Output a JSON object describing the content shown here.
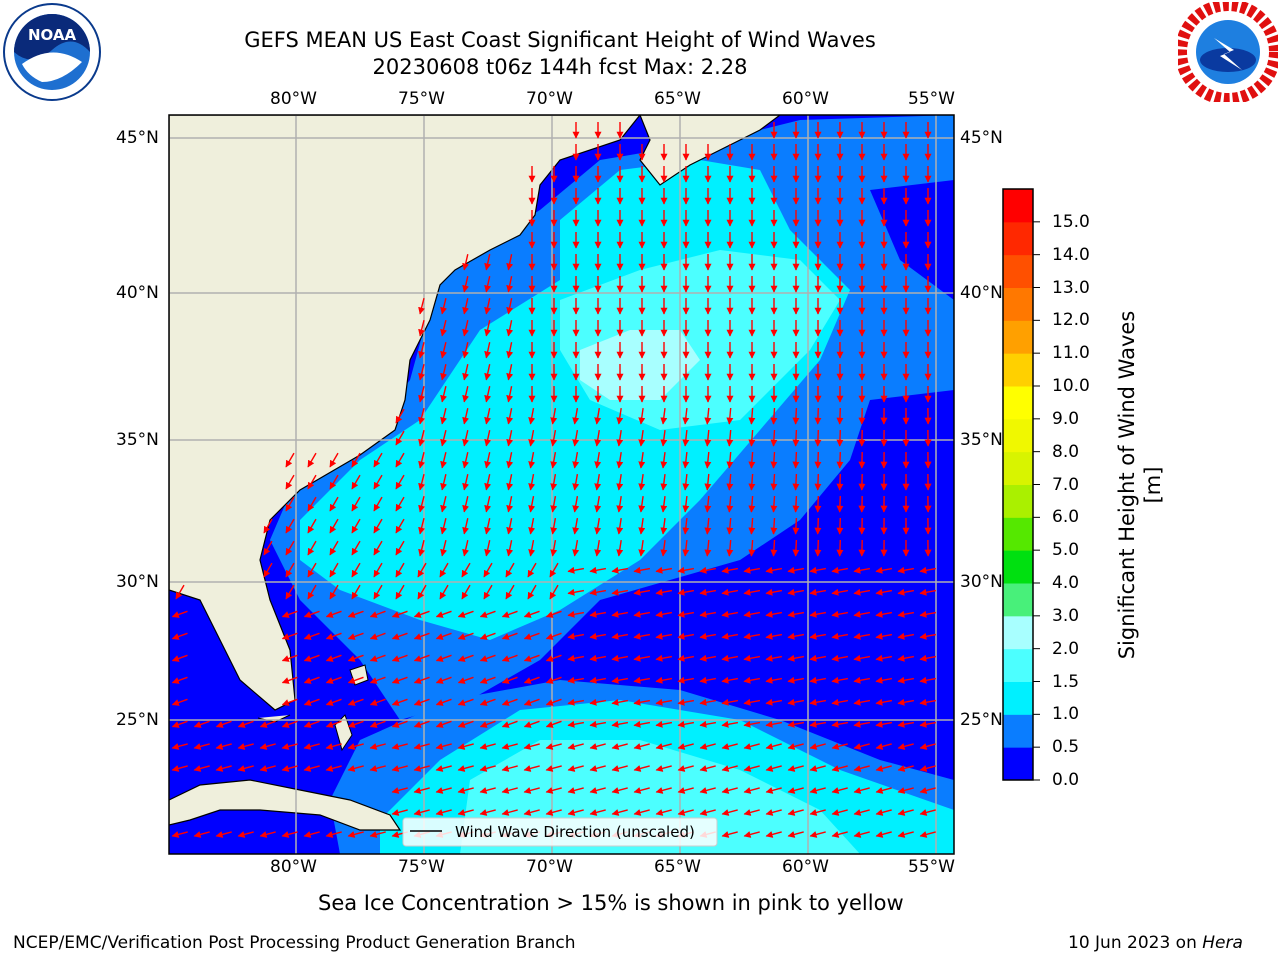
{
  "title_line1": "GEFS MEAN US East Coast Significant Height of Wind Waves",
  "title_line2": "20230608 t06z 144h fcst   Max: 2.28",
  "lon_ticks": [
    "80°W",
    "75°W",
    "70°W",
    "65°W",
    "60°W",
    "55°W"
  ],
  "lat_ticks": [
    "45°N",
    "40°N",
    "35°N",
    "30°N",
    "25°N"
  ],
  "legend_label": "Wind Wave Direction (unscaled)",
  "sea_ice_note": "Sea Ice Concentration > 15% is shown in pink to yellow",
  "footer_left": "NCEP/EMC/Verification Post Processing Product Generation Branch",
  "footer_date": "10 Jun 2023 on ",
  "footer_machine": "Hera",
  "colorbar": {
    "title": "Significant Height of Wind Waves [m]",
    "ticks": [
      "15.0",
      "14.0",
      "13.0",
      "12.0",
      "11.0",
      "10.0",
      "9.0",
      "8.0",
      "7.0",
      "6.0",
      "5.0",
      "4.0",
      "3.0",
      "2.0",
      "1.5",
      "1.0",
      "0.5",
      "0.0"
    ],
    "colors": [
      "#0000ff",
      "#0a7dff",
      "#00f0ff",
      "#4cffff",
      "#a8ffff",
      "#48f07a",
      "#00e010",
      "#55e800",
      "#aaf000",
      "#d8f400",
      "#f0f800",
      "#ffff00",
      "#ffd000",
      "#ffa000",
      "#ff7800",
      "#ff5000",
      "#ff2800",
      "#ff0000"
    ]
  },
  "logos": {
    "noaa_text": "NOAA",
    "nws_text": "NATIONAL WEATHER SERVICE"
  },
  "map": {
    "land_color": "#efefdc",
    "arrow_color": "#ff0000"
  }
}
